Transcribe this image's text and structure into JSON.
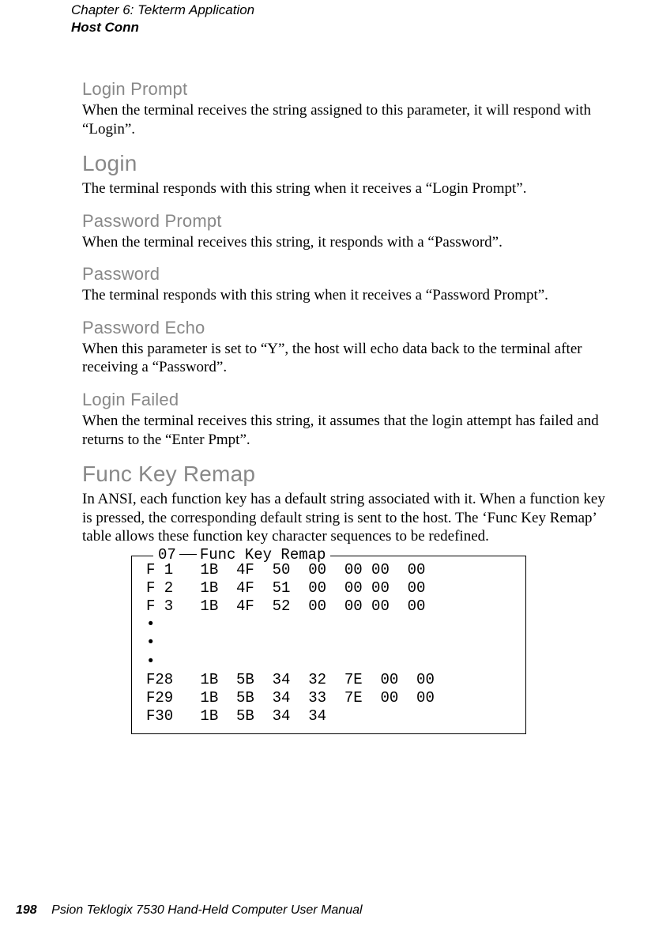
{
  "header": {
    "chapter": "Chapter  6:  Tekterm Application",
    "section": "Host Conn"
  },
  "sections": {
    "login_prompt": {
      "title": "Login Prompt",
      "text": "When the terminal receives the string assigned to this parameter, it will respond with “Login”."
    },
    "login": {
      "title": "Login",
      "text": "The terminal responds with this string when it receives a “Login Prompt”."
    },
    "password_prompt": {
      "title": "Password Prompt",
      "text": "When the terminal receives this string, it responds with a “Password”."
    },
    "password": {
      "title": "Password",
      "text": "The terminal responds with this string when it receives a “Password Prompt”."
    },
    "password_echo": {
      "title": "Password Echo",
      "text": "When this parameter is set to “Y”, the host will echo data back to the terminal after receiving a “Password”."
    },
    "login_failed": {
      "title": "Login Failed",
      "text": "When the terminal receives this string, it assumes that the login attempt has failed and returns to the “Enter Pmpt”."
    },
    "func_key_remap": {
      "title": "Func Key Remap",
      "text": "In ANSI, each function key has a default string associated with it. When a function key is pressed, the corresponding default string is sent to the host. The ‘Func Key Remap’ table allows these function key character sequences to be redefined."
    }
  },
  "func_box": {
    "legend_num": "07",
    "legend_text": "Func Key Remap",
    "lines": {
      "l0": "F 1   1B  4F  50  00  00 00  00",
      "l1": "F 2   1B  4F  51  00  00 00  00",
      "l2": "F 3   1B  4F  52  00  00 00  00",
      "l3": "•",
      "l4": "•",
      "l5": "•",
      "l6": "F28   1B  5B  34  32  7E  00  00",
      "l7": "F29   1B  5B  34  33  7E  00  00",
      "l8": "F30   1B  5B  34  34"
    }
  },
  "footer": {
    "page_number": "198",
    "book_title": "Psion Teklogix 7530 Hand-Held Computer User Manual"
  }
}
